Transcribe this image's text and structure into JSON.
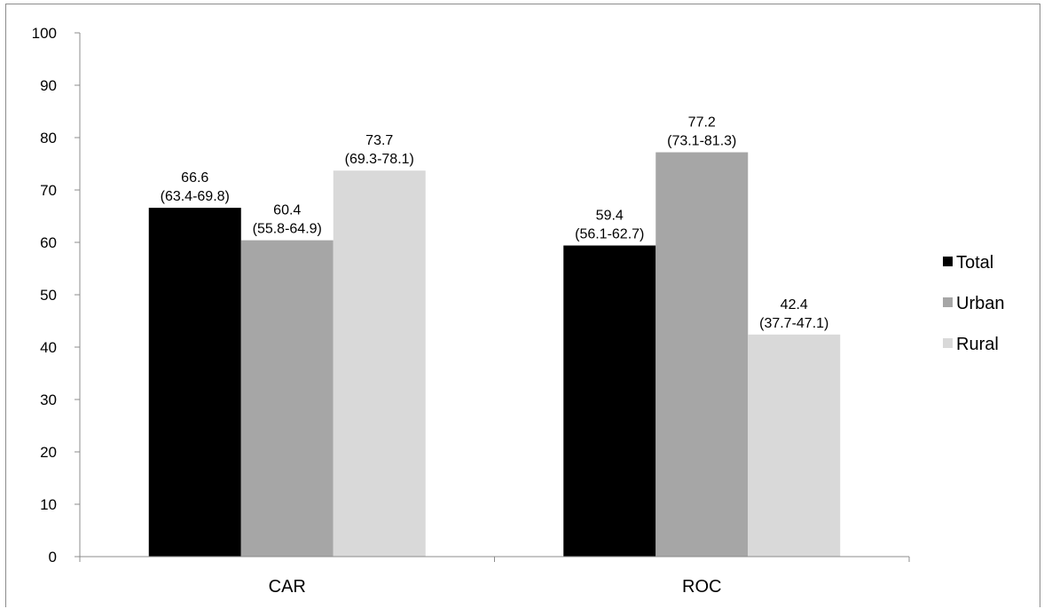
{
  "chart_data": {
    "type": "bar",
    "categories": [
      "CAR",
      "ROC"
    ],
    "series": [
      {
        "name": "Total",
        "color": "#000000",
        "values": [
          66.6,
          59.4
        ],
        "labels": [
          [
            "66.6",
            "(63.4-69.8)"
          ],
          [
            "59.4",
            "(56.1-62.7)"
          ]
        ]
      },
      {
        "name": "Urban",
        "color": "#a6a6a6",
        "values": [
          60.4,
          77.2
        ],
        "labels": [
          [
            "60.4",
            "(55.8-64.9)"
          ],
          [
            "77.2",
            "(73.1-81.3)"
          ]
        ]
      },
      {
        "name": "Rural",
        "color": "#d9d9d9",
        "values": [
          73.7,
          42.4
        ],
        "labels": [
          [
            "73.7",
            "(69.3-78.1)"
          ],
          [
            "42.4",
            "(37.7-47.1)"
          ]
        ]
      }
    ],
    "ylim": [
      0,
      100
    ],
    "yticks": [
      0,
      10,
      20,
      30,
      40,
      50,
      60,
      70,
      80,
      90,
      100
    ],
    "grid": false,
    "legend": "right"
  }
}
